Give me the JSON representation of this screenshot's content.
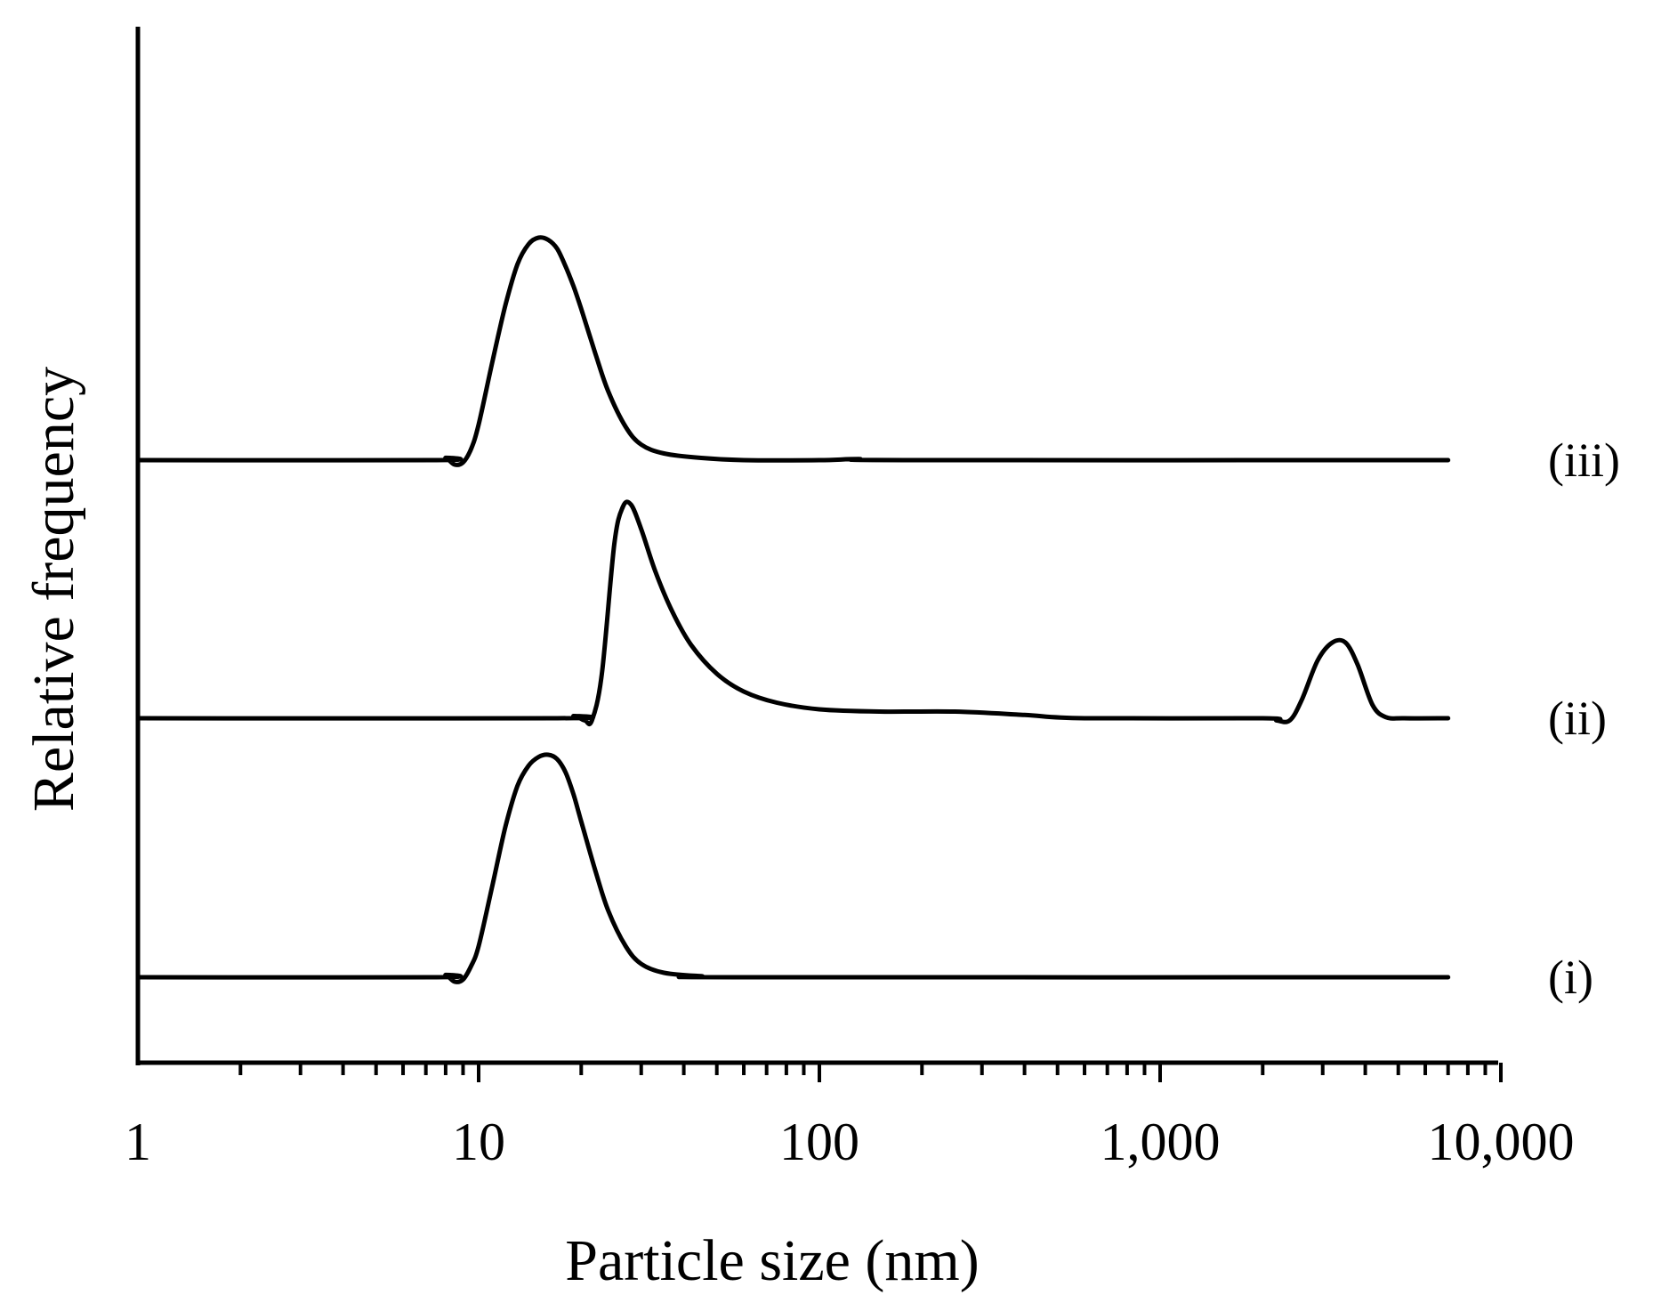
{
  "chart_data": {
    "type": "line",
    "xlabel": "Particle size (nm)",
    "ylabel": "Relative frequency",
    "x_scale": "log",
    "xlim": [
      1,
      10000
    ],
    "x_ticks": [
      1,
      10,
      100,
      1000,
      10000
    ],
    "x_tick_labels": [
      "1",
      "10",
      "100",
      "1,000",
      "10,000"
    ],
    "y_ticks_shown": false,
    "grid": false,
    "series": [
      {
        "name": "(i)",
        "points": [
          [
            1,
            0
          ],
          [
            7.5,
            0
          ],
          [
            8,
            0.01
          ],
          [
            8.5,
            -0.02
          ],
          [
            9,
            -0.01
          ],
          [
            9.5,
            0.05
          ],
          [
            10,
            0.14
          ],
          [
            11,
            0.42
          ],
          [
            12,
            0.68
          ],
          [
            13,
            0.86
          ],
          [
            14,
            0.95
          ],
          [
            15,
            0.99
          ],
          [
            16,
            1.0
          ],
          [
            17,
            0.98
          ],
          [
            18,
            0.92
          ],
          [
            19,
            0.82
          ],
          [
            20,
            0.7
          ],
          [
            22,
            0.48
          ],
          [
            24,
            0.3
          ],
          [
            27,
            0.14
          ],
          [
            30,
            0.06
          ],
          [
            35,
            0.02
          ],
          [
            45,
            0.005
          ],
          [
            60,
            0
          ],
          [
            7000,
            0
          ]
        ]
      },
      {
        "name": "(ii)",
        "points": [
          [
            1,
            0
          ],
          [
            17,
            0
          ],
          [
            19,
            0.01
          ],
          [
            20.5,
            -0.01
          ],
          [
            21.5,
            -0.01
          ],
          [
            23,
            0.2
          ],
          [
            25,
            0.78
          ],
          [
            26.5,
            0.95
          ],
          [
            28,
            0.96
          ],
          [
            30,
            0.85
          ],
          [
            33,
            0.66
          ],
          [
            37,
            0.48
          ],
          [
            42,
            0.33
          ],
          [
            50,
            0.2
          ],
          [
            60,
            0.12
          ],
          [
            75,
            0.07
          ],
          [
            100,
            0.04
          ],
          [
            150,
            0.03
          ],
          [
            250,
            0.03
          ],
          [
            400,
            0.015
          ],
          [
            600,
            0
          ],
          [
            2000,
            0
          ],
          [
            2200,
            -0.01
          ],
          [
            2400,
            -0.01
          ],
          [
            2600,
            0.08
          ],
          [
            2900,
            0.26
          ],
          [
            3200,
            0.34
          ],
          [
            3500,
            0.34
          ],
          [
            3800,
            0.24
          ],
          [
            4200,
            0.06
          ],
          [
            4600,
            0.005
          ],
          [
            5200,
            0
          ],
          [
            7000,
            0
          ]
        ]
      },
      {
        "name": "(iii)",
        "points": [
          [
            1,
            0
          ],
          [
            7.5,
            0
          ],
          [
            8,
            0.01
          ],
          [
            8.5,
            -0.02
          ],
          [
            9,
            -0.01
          ],
          [
            9.5,
            0.05
          ],
          [
            10,
            0.16
          ],
          [
            11,
            0.45
          ],
          [
            12,
            0.7
          ],
          [
            13,
            0.88
          ],
          [
            14,
            0.97
          ],
          [
            15,
            1.0
          ],
          [
            16,
            0.99
          ],
          [
            17,
            0.95
          ],
          [
            18,
            0.87
          ],
          [
            19,
            0.78
          ],
          [
            20,
            0.68
          ],
          [
            22,
            0.48
          ],
          [
            24,
            0.31
          ],
          [
            27,
            0.15
          ],
          [
            30,
            0.07
          ],
          [
            35,
            0.03
          ],
          [
            45,
            0.01
          ],
          [
            60,
            0
          ],
          [
            100,
            0
          ],
          [
            130,
            0.005
          ],
          [
            180,
            0
          ],
          [
            7000,
            0
          ]
        ]
      }
    ]
  }
}
